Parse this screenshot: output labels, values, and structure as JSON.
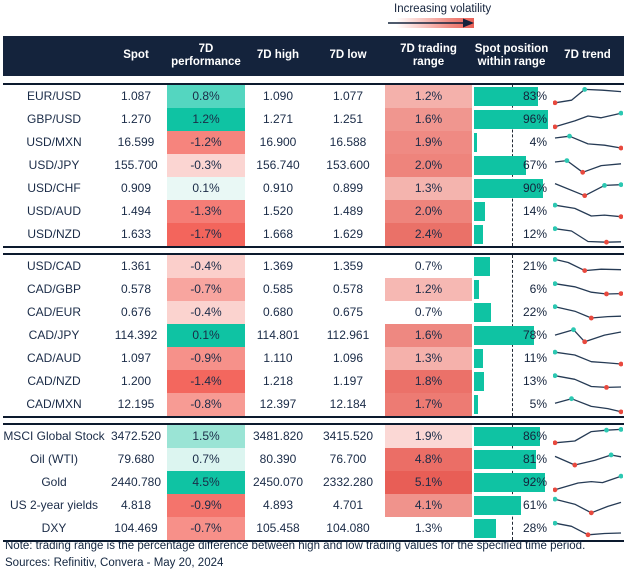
{
  "legend": {
    "label": "Increasing volatility"
  },
  "footer": {
    "note": "Note: trading range is the percentage difference between high and low trading values for the specified time period.",
    "sources": "Sources: Refinitiv, Convera - May 20, 2024"
  },
  "chart_data": {
    "type": "table",
    "title": "7D currency and asset volatility table",
    "columns": [
      "",
      "Spot",
      "7D performance",
      "7D high",
      "7D low",
      "7D trading range",
      "Spot position within range",
      "7D trend"
    ],
    "legend_note": "Increasing volatility",
    "colors": {
      "header_bg": "#14233c",
      "accent_teal": "#0fc3a3",
      "spark_line": "#263b55",
      "marker_red": "#e8493e",
      "marker_teal": "#2cc8b2",
      "border_dark": "#0c1a2e"
    },
    "blocks": [
      {
        "rows": [
          {
            "label": "EUR/USD",
            "spot": "1.087",
            "perf": "0.8%",
            "perf_bg": "#54d6c0",
            "high": "1.090",
            "low": "1.077",
            "range": "1.2%",
            "range_bg": "#f4b1ab",
            "pos_pct": 83,
            "pos_label": "83%",
            "spark_points": [
              [
                0,
                0.18
              ],
              [
                0.25,
                0.32
              ],
              [
                0.45,
                0.92
              ],
              [
                0.72,
                0.88
              ],
              [
                1,
                0.8
              ]
            ],
            "spark_markers": [
              {
                "i": 0,
                "c": "red"
              },
              {
                "i": 2,
                "c": "teal"
              }
            ]
          },
          {
            "label": "GBP/USD",
            "spot": "1.270",
            "perf": "1.2%",
            "perf_bg": "#0fc3a3",
            "high": "1.271",
            "low": "1.251",
            "range": "1.6%",
            "range_bg": "#f0968f",
            "pos_pct": 96,
            "pos_label": "96%",
            "spark_points": [
              [
                0,
                0.12
              ],
              [
                0.3,
                0.45
              ],
              [
                0.5,
                0.72
              ],
              [
                0.7,
                0.62
              ],
              [
                1,
                0.88
              ]
            ],
            "spark_markers": [
              {
                "i": 0,
                "c": "red"
              },
              {
                "i": 4,
                "c": "teal"
              }
            ]
          },
          {
            "label": "USD/MXN",
            "spot": "16.599",
            "perf": "-1.2%",
            "perf_bg": "#f6847d",
            "high": "16.900",
            "low": "16.588",
            "range": "1.9%",
            "range_bg": "#ef8a83",
            "pos_pct": 4,
            "pos_label": "4%",
            "spark_points": [
              [
                0,
                0.78
              ],
              [
                0.22,
                0.88
              ],
              [
                0.5,
                0.45
              ],
              [
                0.75,
                0.38
              ],
              [
                1,
                0.22
              ]
            ],
            "spark_markers": [
              {
                "i": 1,
                "c": "teal"
              },
              {
                "i": 4,
                "c": "red"
              }
            ]
          },
          {
            "label": "USD/JPY",
            "spot": "155.700",
            "perf": "-0.3%",
            "perf_bg": "#fbd5d2",
            "high": "156.740",
            "low": "153.600",
            "range": "2.0%",
            "range_bg": "#ee847c",
            "pos_pct": 67,
            "pos_label": "67%",
            "spark_points": [
              [
                0,
                0.72
              ],
              [
                0.18,
                0.8
              ],
              [
                0.42,
                0.15
              ],
              [
                0.7,
                0.52
              ],
              [
                1,
                0.62
              ]
            ],
            "spark_markers": [
              {
                "i": 1,
                "c": "teal"
              },
              {
                "i": 2,
                "c": "red"
              }
            ]
          },
          {
            "label": "USD/CHF",
            "spot": "0.909",
            "perf": "0.1%",
            "perf_bg": "#e9f8f5",
            "high": "0.910",
            "low": "0.899",
            "range": "1.3%",
            "range_bg": "#f4b4ae",
            "pos_pct": 90,
            "pos_label": "90%",
            "spark_points": [
              [
                0,
                0.8
              ],
              [
                0.45,
                0.13
              ],
              [
                0.75,
                0.7
              ],
              [
                1,
                0.74
              ]
            ],
            "spark_markers": [
              {
                "i": 1,
                "c": "red"
              },
              {
                "i": 2,
                "c": "teal"
              },
              {
                "i": 3,
                "c": "teal"
              }
            ]
          },
          {
            "label": "USD/AUD",
            "spot": "1.494",
            "perf": "-1.3%",
            "perf_bg": "#f57d76",
            "high": "1.520",
            "low": "1.489",
            "range": "2.0%",
            "range_bg": "#ee847c",
            "pos_pct": 14,
            "pos_label": "14%",
            "spark_points": [
              [
                0,
                0.88
              ],
              [
                0.3,
                0.7
              ],
              [
                0.55,
                0.28
              ],
              [
                0.75,
                0.33
              ],
              [
                1,
                0.24
              ]
            ],
            "spark_markers": [
              {
                "i": 0,
                "c": "teal"
              },
              {
                "i": 4,
                "c": "red"
              }
            ]
          },
          {
            "label": "USD/NZD",
            "spot": "1.633",
            "perf": "-1.7%",
            "perf_bg": "#f3655c",
            "high": "1.668",
            "low": "1.629",
            "range": "2.4%",
            "range_bg": "#ea7168",
            "pos_pct": 12,
            "pos_label": "12%",
            "spark_points": [
              [
                0,
                0.85
              ],
              [
                0.25,
                0.72
              ],
              [
                0.5,
                0.14
              ],
              [
                0.78,
                0.1
              ],
              [
                1,
                0.12
              ]
            ],
            "spark_markers": [
              {
                "i": 0,
                "c": "teal"
              },
              {
                "i": 3,
                "c": "red"
              }
            ]
          }
        ]
      },
      {
        "rows": [
          {
            "label": "USD/CAD",
            "spot": "1.361",
            "perf": "-0.4%",
            "perf_bg": "#fbcfcb",
            "high": "1.369",
            "low": "1.359",
            "range": "0.7%",
            "range_bg": "#ffffff",
            "pos_pct": 21,
            "pos_label": "21%",
            "spark_points": [
              [
                0,
                0.92
              ],
              [
                0.2,
                0.75
              ],
              [
                0.45,
                0.3
              ],
              [
                0.7,
                0.38
              ],
              [
                1,
                0.35
              ]
            ],
            "spark_markers": [
              {
                "i": 0,
                "c": "teal"
              },
              {
                "i": 2,
                "c": "red"
              }
            ]
          },
          {
            "label": "CAD/GBP",
            "spot": "0.578",
            "perf": "-0.7%",
            "perf_bg": "#f8a59f",
            "high": "0.585",
            "low": "0.578",
            "range": "1.2%",
            "range_bg": "#f6b8b3",
            "pos_pct": 6,
            "pos_label": "6%",
            "spark_points": [
              [
                0,
                0.85
              ],
              [
                0.3,
                0.68
              ],
              [
                0.55,
                0.38
              ],
              [
                0.78,
                0.28
              ],
              [
                1,
                0.3
              ]
            ],
            "spark_markers": [
              {
                "i": 0,
                "c": "teal"
              },
              {
                "i": 3,
                "c": "red"
              },
              {
                "i": 4,
                "c": "red"
              }
            ]
          },
          {
            "label": "CAD/EUR",
            "spot": "0.676",
            "perf": "-0.4%",
            "perf_bg": "#fbd3cf",
            "high": "0.680",
            "low": "0.675",
            "range": "0.7%",
            "range_bg": "#ffffff",
            "pos_pct": 22,
            "pos_label": "22%",
            "spark_points": [
              [
                0,
                0.85
              ],
              [
                0.3,
                0.6
              ],
              [
                0.55,
                0.22
              ],
              [
                0.8,
                0.3
              ],
              [
                1,
                0.32
              ]
            ],
            "spark_markers": [
              {
                "i": 0,
                "c": "teal"
              },
              {
                "i": 2,
                "c": "red"
              }
            ]
          },
          {
            "label": "CAD/JPY",
            "spot": "114.392",
            "perf": "0.1%",
            "perf_bg": "#0fc3a3",
            "high": "114.801",
            "low": "112.961",
            "range": "1.6%",
            "range_bg": "#ee8881",
            "pos_pct": 78,
            "pos_label": "78%",
            "spark_points": [
              [
                0,
                0.55
              ],
              [
                0.28,
                0.85
              ],
              [
                0.45,
                0.18
              ],
              [
                0.75,
                0.55
              ],
              [
                1,
                0.72
              ]
            ],
            "spark_markers": [
              {
                "i": 1,
                "c": "teal"
              },
              {
                "i": 2,
                "c": "red"
              }
            ]
          },
          {
            "label": "CAD/AUD",
            "spot": "1.097",
            "perf": "-0.9%",
            "perf_bg": "#f6918a",
            "high": "1.110",
            "low": "1.096",
            "range": "1.3%",
            "range_bg": "#f5b1ab",
            "pos_pct": 11,
            "pos_label": "11%",
            "spark_points": [
              [
                0,
                0.88
              ],
              [
                0.3,
                0.72
              ],
              [
                0.55,
                0.35
              ],
              [
                0.75,
                0.3
              ],
              [
                1,
                0.22
              ]
            ],
            "spark_markers": [
              {
                "i": 0,
                "c": "teal"
              },
              {
                "i": 4,
                "c": "red"
              }
            ]
          },
          {
            "label": "CAD/NZD",
            "spot": "1.200",
            "perf": "-1.4%",
            "perf_bg": "#f3675e",
            "high": "1.218",
            "low": "1.197",
            "range": "1.8%",
            "range_bg": "#eb7169",
            "pos_pct": 13,
            "pos_label": "13%",
            "spark_points": [
              [
                0,
                0.85
              ],
              [
                0.3,
                0.65
              ],
              [
                0.55,
                0.25
              ],
              [
                0.78,
                0.2
              ],
              [
                1,
                0.22
              ]
            ],
            "spark_markers": [
              {
                "i": 0,
                "c": "teal"
              },
              {
                "i": 3,
                "c": "red"
              }
            ]
          },
          {
            "label": "CAD/MXN",
            "spot": "12.195",
            "perf": "-0.8%",
            "perf_bg": "#f79b94",
            "high": "12.397",
            "low": "12.184",
            "range": "1.7%",
            "range_bg": "#ed7b73",
            "pos_pct": 5,
            "pos_label": "5%",
            "spark_points": [
              [
                0,
                0.6
              ],
              [
                0.25,
                0.85
              ],
              [
                0.55,
                0.42
              ],
              [
                0.8,
                0.3
              ],
              [
                1,
                0.12
              ]
            ],
            "spark_markers": [
              {
                "i": 1,
                "c": "teal"
              },
              {
                "i": 4,
                "c": "red"
              }
            ]
          }
        ]
      },
      {
        "rows": [
          {
            "label": "MSCI Global Stock",
            "spot": "3472.520",
            "perf": "1.5%",
            "perf_bg": "#9ae4d5",
            "high": "3481.820",
            "low": "3415.520",
            "range": "1.9%",
            "range_bg": "#fbd8d5",
            "pos_pct": 86,
            "pos_label": "86%",
            "spark_points": [
              [
                0,
                0.18
              ],
              [
                0.3,
                0.28
              ],
              [
                0.55,
                0.8
              ],
              [
                0.78,
                0.88
              ],
              [
                1,
                0.92
              ]
            ],
            "spark_markers": [
              {
                "i": 0,
                "c": "red"
              },
              {
                "i": 3,
                "c": "teal"
              },
              {
                "i": 4,
                "c": "teal"
              }
            ]
          },
          {
            "label": "Oil (WTI)",
            "spot": "79.680",
            "perf": "0.7%",
            "perf_bg": "#dcf5f0",
            "high": "80.390",
            "low": "76.700",
            "range": "4.8%",
            "range_bg": "#eb6e66",
            "pos_pct": 81,
            "pos_label": "81%",
            "spark_points": [
              [
                0,
                0.7
              ],
              [
                0.3,
                0.22
              ],
              [
                0.6,
                0.48
              ],
              [
                0.85,
                0.78
              ],
              [
                1,
                0.68
              ]
            ],
            "spark_markers": [
              {
                "i": 1,
                "c": "red"
              },
              {
                "i": 3,
                "c": "teal"
              }
            ]
          },
          {
            "label": "Gold",
            "spot": "2440.780",
            "perf": "4.5%",
            "perf_bg": "#0fc3a3",
            "high": "2450.070",
            "low": "2332.280",
            "range": "5.1%",
            "range_bg": "#e85e56",
            "pos_pct": 92,
            "pos_label": "92%",
            "spark_points": [
              [
                0,
                0.12
              ],
              [
                0.35,
                0.5
              ],
              [
                0.55,
                0.58
              ],
              [
                0.72,
                0.52
              ],
              [
                1,
                0.88
              ]
            ],
            "spark_markers": [
              {
                "i": 0,
                "c": "red"
              },
              {
                "i": 4,
                "c": "teal"
              }
            ]
          },
          {
            "label": "US 2-year yields",
            "spot": "4.818",
            "perf": "-0.9%",
            "perf_bg": "#f4746c",
            "high": "4.893",
            "low": "4.701",
            "range": "4.1%",
            "range_bg": "#f0938c",
            "pos_pct": 61,
            "pos_label": "61%",
            "spark_points": [
              [
                0,
                0.88
              ],
              [
                0.3,
                0.6
              ],
              [
                0.55,
                0.12
              ],
              [
                0.8,
                0.48
              ],
              [
                1,
                0.7
              ]
            ],
            "spark_markers": [
              {
                "i": 0,
                "c": "teal"
              },
              {
                "i": 2,
                "c": "red"
              }
            ]
          },
          {
            "label": "DXY",
            "spot": "104.469",
            "perf": "-0.7%",
            "perf_bg": "#f79089",
            "high": "105.458",
            "low": "104.080",
            "range": "1.3%",
            "range_bg": "#ffffff",
            "pos_pct": 28,
            "pos_label": "28%",
            "spark_points": [
              [
                0,
                0.82
              ],
              [
                0.25,
                0.65
              ],
              [
                0.5,
                0.18
              ],
              [
                0.75,
                0.25
              ],
              [
                1,
                0.28
              ]
            ],
            "spark_markers": [
              {
                "i": 0,
                "c": "teal"
              },
              {
                "i": 2,
                "c": "red"
              }
            ]
          }
        ]
      }
    ]
  }
}
